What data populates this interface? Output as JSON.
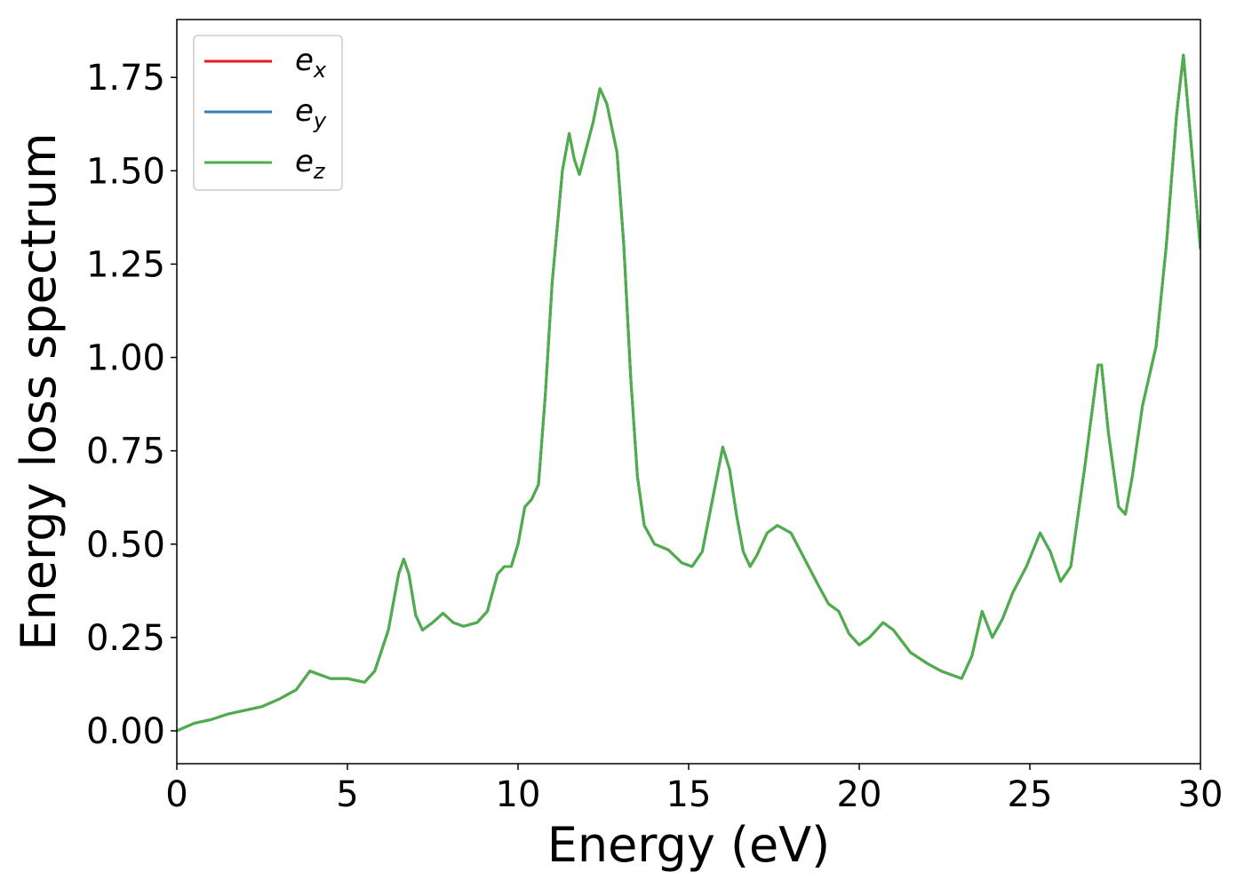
{
  "chart_data": {
    "type": "line",
    "xlabel": "Energy (eV)",
    "ylabel": "Energy loss spectrum",
    "x": [
      0,
      0.5,
      1.0,
      1.5,
      2.0,
      2.5,
      3.0,
      3.5,
      3.9,
      4.2,
      4.5,
      5.0,
      5.5,
      5.8,
      6.2,
      6.5,
      6.65,
      6.8,
      7.0,
      7.2,
      7.5,
      7.8,
      8.1,
      8.4,
      8.8,
      9.1,
      9.4,
      9.6,
      9.8,
      10.0,
      10.2,
      10.4,
      10.6,
      10.8,
      11.0,
      11.3,
      11.5,
      11.65,
      11.8,
      12.0,
      12.2,
      12.4,
      12.6,
      12.9,
      13.1,
      13.3,
      13.5,
      13.7,
      14.0,
      14.4,
      14.8,
      15.1,
      15.4,
      15.7,
      16.0,
      16.2,
      16.4,
      16.6,
      16.8,
      17.0,
      17.3,
      17.6,
      18.0,
      18.4,
      18.8,
      19.1,
      19.4,
      19.7,
      20.0,
      20.3,
      20.7,
      21.0,
      21.5,
      22.0,
      22.4,
      23.0,
      23.3,
      23.6,
      23.9,
      24.2,
      24.5,
      24.9,
      25.3,
      25.6,
      25.9,
      26.2,
      26.6,
      27.0,
      27.1,
      27.3,
      27.6,
      27.8,
      28.0,
      28.3,
      28.7,
      29.0,
      29.3,
      29.5,
      29.7,
      30.0
    ],
    "series": [
      {
        "name": "ex",
        "color": "#e41a1c",
        "values": [
          0,
          0.02,
          0.03,
          0.045,
          0.055,
          0.065,
          0.085,
          0.11,
          0.16,
          0.15,
          0.14,
          0.14,
          0.13,
          0.16,
          0.27,
          0.42,
          0.46,
          0.42,
          0.31,
          0.27,
          0.29,
          0.315,
          0.29,
          0.28,
          0.29,
          0.32,
          0.42,
          0.44,
          0.44,
          0.5,
          0.6,
          0.62,
          0.66,
          0.9,
          1.2,
          1.5,
          1.6,
          1.53,
          1.49,
          1.56,
          1.63,
          1.72,
          1.68,
          1.55,
          1.3,
          0.95,
          0.68,
          0.55,
          0.5,
          0.485,
          0.45,
          0.44,
          0.48,
          0.62,
          0.76,
          0.7,
          0.58,
          0.48,
          0.44,
          0.47,
          0.53,
          0.55,
          0.53,
          0.46,
          0.39,
          0.34,
          0.32,
          0.26,
          0.23,
          0.25,
          0.29,
          0.27,
          0.21,
          0.18,
          0.16,
          0.14,
          0.2,
          0.32,
          0.25,
          0.3,
          0.37,
          0.44,
          0.53,
          0.48,
          0.4,
          0.44,
          0.7,
          0.98,
          0.98,
          0.8,
          0.6,
          0.58,
          0.68,
          0.87,
          1.03,
          1.3,
          1.65,
          1.81,
          1.6,
          1.29
        ]
      },
      {
        "name": "ey",
        "color": "#377eb8",
        "values": [
          0,
          0.02,
          0.03,
          0.045,
          0.055,
          0.065,
          0.085,
          0.11,
          0.16,
          0.15,
          0.14,
          0.14,
          0.13,
          0.16,
          0.27,
          0.42,
          0.46,
          0.42,
          0.31,
          0.27,
          0.29,
          0.315,
          0.29,
          0.28,
          0.29,
          0.32,
          0.42,
          0.44,
          0.44,
          0.5,
          0.6,
          0.62,
          0.66,
          0.9,
          1.2,
          1.5,
          1.6,
          1.53,
          1.49,
          1.56,
          1.63,
          1.72,
          1.68,
          1.55,
          1.3,
          0.95,
          0.68,
          0.55,
          0.5,
          0.485,
          0.45,
          0.44,
          0.48,
          0.62,
          0.76,
          0.7,
          0.58,
          0.48,
          0.44,
          0.47,
          0.53,
          0.55,
          0.53,
          0.46,
          0.39,
          0.34,
          0.32,
          0.26,
          0.23,
          0.25,
          0.29,
          0.27,
          0.21,
          0.18,
          0.16,
          0.14,
          0.2,
          0.32,
          0.25,
          0.3,
          0.37,
          0.44,
          0.53,
          0.48,
          0.4,
          0.44,
          0.7,
          0.98,
          0.98,
          0.8,
          0.6,
          0.58,
          0.68,
          0.87,
          1.03,
          1.3,
          1.65,
          1.81,
          1.6,
          1.29
        ]
      },
      {
        "name": "ez",
        "color": "#4daf4a",
        "values": [
          0,
          0.02,
          0.03,
          0.045,
          0.055,
          0.065,
          0.085,
          0.11,
          0.16,
          0.15,
          0.14,
          0.14,
          0.13,
          0.16,
          0.27,
          0.42,
          0.46,
          0.42,
          0.31,
          0.27,
          0.29,
          0.315,
          0.29,
          0.28,
          0.29,
          0.32,
          0.42,
          0.44,
          0.44,
          0.5,
          0.6,
          0.62,
          0.66,
          0.9,
          1.2,
          1.5,
          1.6,
          1.53,
          1.49,
          1.56,
          1.63,
          1.72,
          1.68,
          1.55,
          1.3,
          0.95,
          0.68,
          0.55,
          0.5,
          0.485,
          0.45,
          0.44,
          0.48,
          0.62,
          0.76,
          0.7,
          0.58,
          0.48,
          0.44,
          0.47,
          0.53,
          0.55,
          0.53,
          0.46,
          0.39,
          0.34,
          0.32,
          0.26,
          0.23,
          0.25,
          0.29,
          0.27,
          0.21,
          0.18,
          0.16,
          0.14,
          0.2,
          0.32,
          0.25,
          0.3,
          0.37,
          0.44,
          0.53,
          0.48,
          0.4,
          0.44,
          0.7,
          0.98,
          0.98,
          0.8,
          0.6,
          0.58,
          0.68,
          0.87,
          1.03,
          1.3,
          1.65,
          1.81,
          1.6,
          1.29
        ]
      }
    ],
    "xlim": [
      0,
      30
    ],
    "xticks": [
      0,
      5,
      10,
      15,
      20,
      25,
      30
    ],
    "ylim": [
      -0.088,
      1.905
    ],
    "yticks": [
      {
        "value": 0,
        "label": "0.00"
      },
      {
        "value": 0.25,
        "label": "0.25"
      },
      {
        "value": 0.5,
        "label": "0.50"
      },
      {
        "value": 0.75,
        "label": "0.75"
      },
      {
        "value": 1,
        "label": "1.00"
      },
      {
        "value": 1.25,
        "label": "1.25"
      },
      {
        "value": 1.5,
        "label": "1.50"
      },
      {
        "value": 1.75,
        "label": "1.75"
      }
    ],
    "grid": false,
    "legend": "upper left"
  }
}
